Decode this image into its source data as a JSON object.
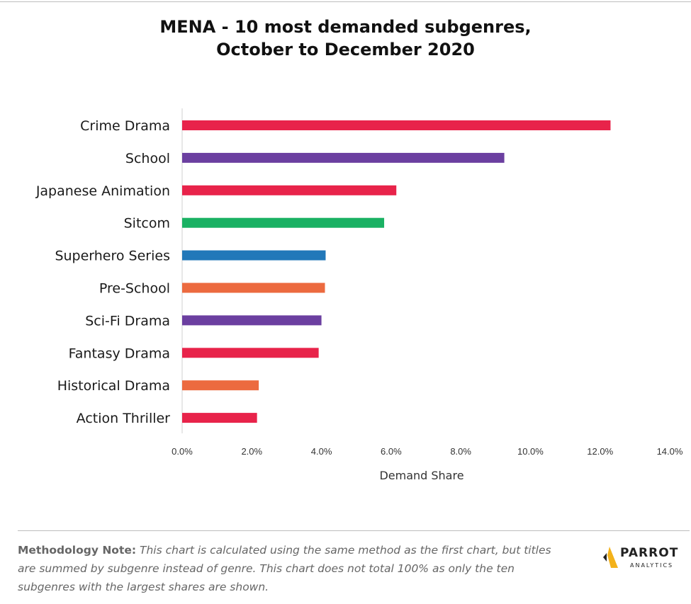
{
  "header": {
    "title_line1": "MENA - 10 most demanded subgenres,",
    "title_line2": "October to December 2020"
  },
  "chart_data": {
    "type": "bar",
    "orientation": "horizontal",
    "categories": [
      "Crime Drama",
      "School",
      "Japanese Animation",
      "Sitcom",
      "Superhero Series",
      "Pre-School",
      "Sci-Fi Drama",
      "Fantasy Drama",
      "Historical Drama",
      "Action Thriller"
    ],
    "values": [
      12.3,
      9.25,
      6.15,
      5.8,
      4.12,
      4.1,
      4.0,
      3.92,
      2.2,
      2.15
    ],
    "colors": [
      "#e8234a",
      "#6b3fa0",
      "#e8234a",
      "#1ab163",
      "#2278b9",
      "#ec6a3f",
      "#6b3fa0",
      "#e8234a",
      "#ec6a3f",
      "#e8234a"
    ],
    "xlabel": "Demand Share",
    "xlim": [
      0,
      14
    ],
    "ticks": [
      "0.0%",
      "2.0%",
      "4.0%",
      "6.0%",
      "8.0%",
      "10.0%",
      "12.0%",
      "14.0%"
    ],
    "grid": false,
    "legend": "none"
  },
  "footer": {
    "note_head": "Methodology Note:",
    "note_body": " This chart is calculated using the same method as the first chart, but titles are summed by subgenre instead of genre. This chart does not total 100% as only the ten subgenres with the largest shares are shown.",
    "logo_name": "PARROT",
    "logo_sub": "ANALYTICS",
    "logo_color": "#f3b21b"
  }
}
